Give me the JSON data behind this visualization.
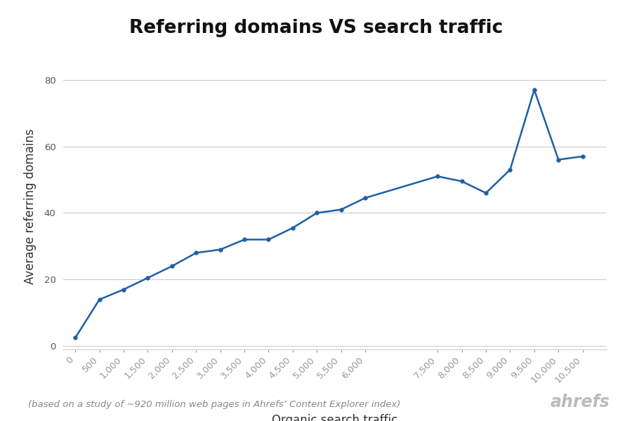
{
  "title": "Referring domains VS search traffic",
  "xlabel": "Organic search traffic",
  "ylabel": "Average referring domains",
  "footnote": "(based on a study of ~920 million web pages in Ahrefs’ Content Explorer index)",
  "branding": "ahrefs",
  "x": [
    0,
    500,
    1000,
    1500,
    2000,
    2500,
    3000,
    3500,
    4000,
    4500,
    5000,
    5500,
    6000,
    7500,
    8000,
    8500,
    9000,
    9500,
    10000,
    10500
  ],
  "y": [
    2.5,
    14,
    17,
    20.5,
    24,
    28,
    29,
    32,
    32,
    35.5,
    40,
    41,
    44.5,
    51,
    49.5,
    46,
    53,
    77,
    56,
    57
  ],
  "line_color": "#1e5fa6",
  "line_width": 1.8,
  "marker_color": "#1e5fa6",
  "marker_size": 4,
  "bg_color": "#ffffff",
  "grid_color": "#cccccc",
  "title_fontsize": 19,
  "label_fontsize": 12,
  "tick_fontsize": 9.5,
  "footnote_fontsize": 9.5,
  "branding_fontsize": 17,
  "ylim": [
    -1,
    85
  ],
  "yticks": [
    0,
    20,
    40,
    60,
    80
  ],
  "xlim": [
    -250,
    11000
  ],
  "xtick_vals": [
    0,
    500,
    1000,
    1500,
    2000,
    2500,
    3000,
    3500,
    4000,
    4500,
    5000,
    5500,
    6000,
    7500,
    8000,
    8500,
    9000,
    9500,
    10000,
    10500
  ]
}
